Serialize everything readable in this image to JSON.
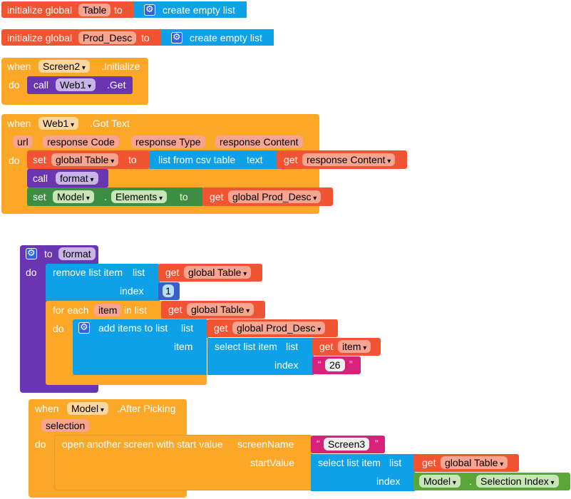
{
  "init_table": {
    "label": "initialize global",
    "var": "Table",
    "to": "to",
    "create": "create empty list"
  },
  "init_prod": {
    "label": "initialize global",
    "var": "Prod_Desc",
    "to": "to",
    "create": "create empty list"
  },
  "screen_init": {
    "when": "when",
    "component": "Screen2",
    "event": ".Initialize",
    "do": "do",
    "call": "call",
    "call_component": "Web1",
    "method": ".Get"
  },
  "gottext": {
    "when": "when",
    "component": "Web1",
    "event": ".Got Text",
    "params": [
      "url",
      "response Code",
      "response Type",
      "response Content"
    ],
    "do": "do",
    "set1": {
      "set": "set",
      "var": "global Table",
      "to": "to",
      "func": "list from csv table",
      "text": "text",
      "get": "get",
      "getvar": "response Content"
    },
    "call": {
      "call": "call",
      "proc": "format"
    },
    "set2": {
      "set": "set",
      "component": "Model",
      "dot": ".",
      "prop": "Elements",
      "to": "to",
      "get": "get",
      "getvar": "global Prod_Desc"
    }
  },
  "format_proc": {
    "to": "to",
    "name": "format",
    "do": "do",
    "remove": {
      "label": "remove list item",
      "list": "list",
      "get": "get",
      "getvar": "global Table",
      "index": "index",
      "index_val": "1"
    },
    "foreach": {
      "label": "for each",
      "var": "item",
      "in_list": "in list",
      "get": "get",
      "getvar": "global Table",
      "do": "do",
      "add": {
        "label": "add items to list",
        "list": "list",
        "get": "get",
        "getvar": "global Prod_Desc",
        "item": "item",
        "select": {
          "label": "select list item",
          "list": "list",
          "get": "get",
          "getvar": "item",
          "index": "index",
          "index_val": "26",
          "quote_l": "“",
          "quote_r": "”"
        }
      }
    }
  },
  "afterpick": {
    "when": "when",
    "component": "Model",
    "event": ".After Picking",
    "param": "selection",
    "do": "do",
    "open": {
      "label": "open another screen with start value",
      "screen_name": "screenName",
      "screen_val": "Screen3",
      "quote_l": "“",
      "quote_r": "”",
      "start_value": "startValue",
      "select": {
        "label": "select list item",
        "list": "list",
        "get": "get",
        "getvar": "global Table",
        "index": "index",
        "component": "Model",
        "dot": ".",
        "prop": "Selection Index"
      }
    }
  }
}
